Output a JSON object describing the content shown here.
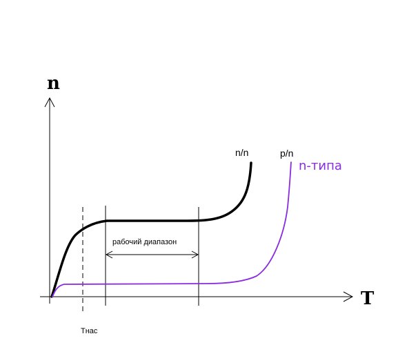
{
  "axes": {
    "y_label": "n",
    "x_label": "T"
  },
  "labels": {
    "tnas": "Тнас",
    "working_range": "рабочий диапазон"
  },
  "curves": [
    {
      "id": "n-n",
      "label": "n/n",
      "color": "#000000"
    },
    {
      "id": "p-n",
      "label": "p/n",
      "color": "#8a2be2"
    }
  ],
  "annotation": {
    "text": "n-типа",
    "color": "#8a2be2"
  }
}
